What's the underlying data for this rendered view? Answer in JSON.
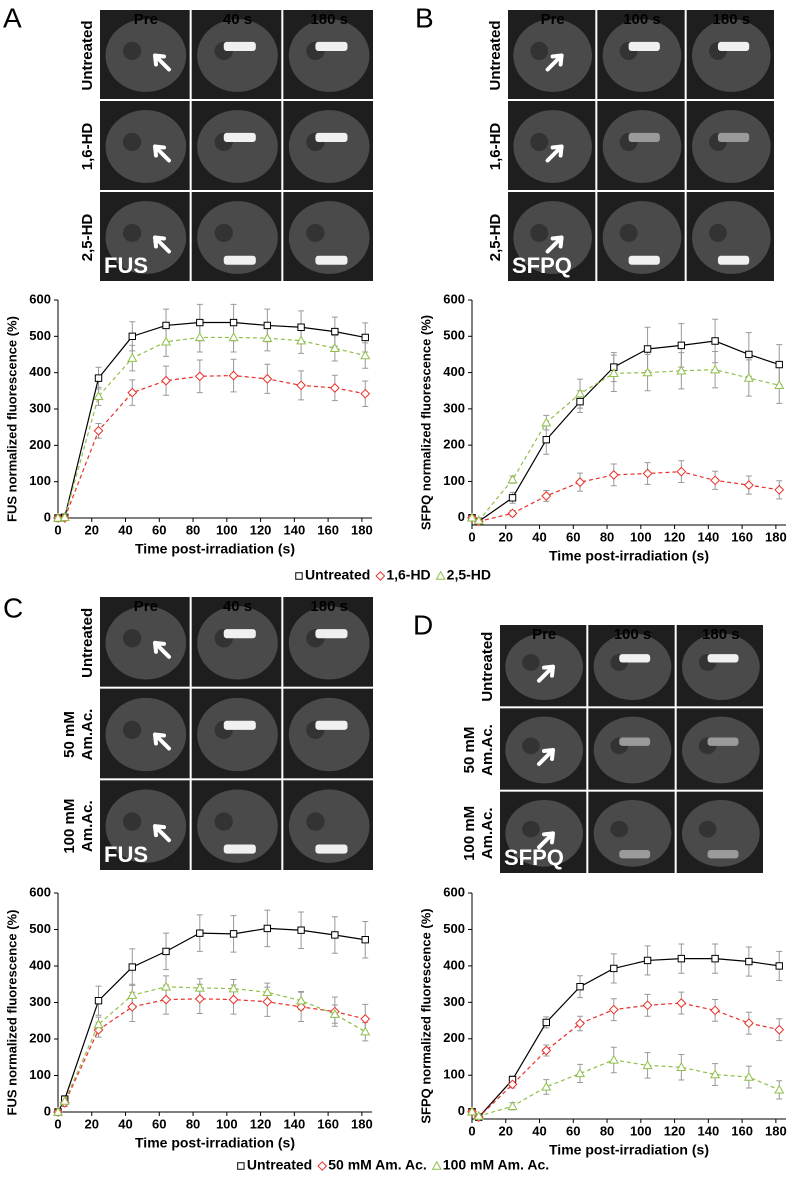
{
  "panels": [
    {
      "letter": "A",
      "columns": [
        "Pre",
        "40 s",
        "180 s"
      ],
      "rows": [
        [
          "Untreated"
        ],
        [
          "1,6-HD"
        ],
        [
          "2,5-HD"
        ]
      ],
      "label": "FUS"
    },
    {
      "letter": "B",
      "columns": [
        "Pre",
        "100 s",
        "180 s"
      ],
      "rows": [
        [
          "Untreated"
        ],
        [
          "1,6-HD"
        ],
        [
          "2,5-HD"
        ]
      ],
      "label": "SFPQ"
    },
    {
      "letter": "C",
      "columns": [
        "Pre",
        "40 s",
        "180 s"
      ],
      "rows": [
        [
          "Untreated"
        ],
        [
          "50 mM",
          "Am.Ac."
        ],
        [
          "100 mM",
          "Am.Ac."
        ]
      ],
      "label": "FUS"
    },
    {
      "letter": "D",
      "columns": [
        "Pre",
        "100 s",
        "180 s"
      ],
      "rows": [
        [
          "Untreated"
        ],
        [
          "50 mM",
          "Am.Ac."
        ],
        [
          "100 mM",
          "Am.Ac."
        ]
      ],
      "label": "SFPQ"
    }
  ],
  "chart_data": [
    {
      "type": "line",
      "y_label": "FUS normalized fluorescence (%)",
      "x_label": "Time post-irradiation (s)",
      "x": [
        0,
        4,
        24,
        44,
        64,
        84,
        104,
        124,
        144,
        164,
        182
      ],
      "xlim": [
        0,
        186
      ],
      "xticks": [
        0,
        20,
        40,
        60,
        80,
        100,
        120,
        140,
        160,
        180
      ],
      "ylim": [
        0,
        600
      ],
      "yticks": [
        0,
        100,
        200,
        300,
        400,
        500,
        600
      ],
      "series": [
        {
          "name": "Untreated",
          "color": "#000000",
          "marker": "square",
          "dashed": false,
          "values": [
            0,
            2,
            385,
            500,
            530,
            538,
            538,
            530,
            525,
            513,
            497
          ],
          "errors": [
            0,
            5,
            30,
            40,
            45,
            50,
            50,
            45,
            45,
            40,
            40
          ]
        },
        {
          "name": "1,6-HD",
          "color": "#e8302a",
          "marker": "diamond",
          "dashed": true,
          "values": [
            0,
            0,
            240,
            345,
            378,
            390,
            392,
            383,
            365,
            358,
            342
          ],
          "errors": [
            0,
            5,
            20,
            35,
            40,
            45,
            45,
            40,
            40,
            35,
            35
          ]
        },
        {
          "name": "2,5-HD",
          "color": "#8fbf4a",
          "marker": "triangle",
          "dashed": true,
          "values": [
            0,
            2,
            335,
            440,
            485,
            497,
            497,
            495,
            488,
            467,
            447
          ],
          "errors": [
            0,
            5,
            25,
            35,
            40,
            40,
            40,
            35,
            35,
            35,
            35
          ]
        }
      ]
    },
    {
      "type": "line",
      "y_label": "SFPQ normalized fluorescence (%)",
      "x_label": "Time post-irradiation (s)",
      "x": [
        0,
        4,
        24,
        44,
        64,
        84,
        104,
        124,
        144,
        164,
        182
      ],
      "xlim": [
        0,
        186
      ],
      "xticks": [
        0,
        20,
        40,
        60,
        80,
        100,
        120,
        140,
        160,
        180
      ],
      "ylim": [
        -20,
        600
      ],
      "yticks": [
        0,
        100,
        200,
        300,
        400,
        500,
        600
      ],
      "series": [
        {
          "name": "Untreated",
          "color": "#000000",
          "marker": "square",
          "dashed": false,
          "values": [
            0,
            -10,
            55,
            215,
            320,
            415,
            465,
            475,
            487,
            450,
            422
          ],
          "errors": [
            0,
            5,
            15,
            40,
            30,
            40,
            60,
            60,
            60,
            60,
            55
          ]
        },
        {
          "name": "1,6-HD",
          "color": "#e8302a",
          "marker": "diamond",
          "dashed": true,
          "values": [
            0,
            -10,
            12,
            60,
            98,
            118,
            122,
            127,
            103,
            90,
            77
          ],
          "errors": [
            0,
            5,
            8,
            15,
            25,
            30,
            30,
            30,
            25,
            25,
            25
          ]
        },
        {
          "name": "2,5-HD",
          "color": "#8fbf4a",
          "marker": "triangle",
          "dashed": true,
          "values": [
            0,
            -8,
            105,
            262,
            342,
            398,
            400,
            405,
            408,
            385,
            365
          ],
          "errors": [
            0,
            5,
            10,
            20,
            40,
            50,
            50,
            50,
            50,
            50,
            50
          ]
        }
      ]
    },
    {
      "type": "line",
      "y_label": "FUS normalized fluorescence (%)",
      "x_label": "Time post-irradiation (s)",
      "x": [
        0,
        4,
        24,
        44,
        64,
        84,
        104,
        124,
        144,
        164,
        182
      ],
      "xlim": [
        0,
        186
      ],
      "xticks": [
        0,
        20,
        40,
        60,
        80,
        100,
        120,
        140,
        160,
        180
      ],
      "ylim": [
        0,
        600
      ],
      "yticks": [
        0,
        100,
        200,
        300,
        400,
        500,
        600
      ],
      "series": [
        {
          "name": "Untreated",
          "color": "#000000",
          "marker": "square",
          "dashed": false,
          "values": [
            0,
            35,
            305,
            397,
            440,
            490,
            488,
            503,
            498,
            485,
            472
          ],
          "errors": [
            0,
            10,
            40,
            50,
            50,
            50,
            50,
            50,
            50,
            50,
            50
          ]
        },
        {
          "name": "50 mM Am. Ac.",
          "color": "#e8302a",
          "marker": "diamond",
          "dashed": true,
          "values": [
            0,
            25,
            225,
            288,
            308,
            310,
            308,
            302,
            288,
            275,
            255
          ],
          "errors": [
            0,
            10,
            20,
            40,
            40,
            40,
            40,
            40,
            40,
            40,
            40
          ]
        },
        {
          "name": "100 mM Am. Ac.",
          "color": "#8fbf4a",
          "marker": "triangle",
          "dashed": true,
          "values": [
            0,
            30,
            240,
            320,
            343,
            340,
            338,
            328,
            305,
            268,
            220
          ],
          "errors": [
            0,
            10,
            20,
            30,
            30,
            25,
            25,
            25,
            25,
            25,
            25
          ]
        }
      ]
    },
    {
      "type": "line",
      "y_label": "SFPQ normalized fluorescence (%)",
      "x_label": "Time post-irradiation (s)",
      "x": [
        0,
        4,
        24,
        44,
        64,
        84,
        104,
        124,
        144,
        164,
        182
      ],
      "xlim": [
        0,
        186
      ],
      "xticks": [
        0,
        20,
        40,
        60,
        80,
        100,
        120,
        140,
        160,
        180
      ],
      "ylim": [
        -20,
        600
      ],
      "yticks": [
        0,
        100,
        200,
        300,
        400,
        500,
        600
      ],
      "series": [
        {
          "name": "Untreated",
          "color": "#000000",
          "marker": "square",
          "dashed": false,
          "values": [
            0,
            -15,
            88,
            245,
            343,
            393,
            415,
            420,
            420,
            412,
            400
          ],
          "errors": [
            0,
            5,
            10,
            15,
            30,
            40,
            40,
            40,
            40,
            40,
            40
          ]
        },
        {
          "name": "50 mM Am. Ac.",
          "color": "#e8302a",
          "marker": "diamond",
          "dashed": true,
          "values": [
            0,
            -15,
            75,
            168,
            242,
            280,
            292,
            298,
            278,
            243,
            225
          ],
          "errors": [
            0,
            5,
            10,
            15,
            20,
            30,
            30,
            30,
            30,
            30,
            30
          ]
        },
        {
          "name": "100 mM Am. Ac.",
          "color": "#8fbf4a",
          "marker": "triangle",
          "dashed": true,
          "values": [
            0,
            -12,
            15,
            68,
            105,
            142,
            127,
            122,
            102,
            95,
            60
          ],
          "errors": [
            0,
            5,
            10,
            20,
            25,
            35,
            35,
            35,
            30,
            30,
            25
          ]
        }
      ]
    }
  ]
}
